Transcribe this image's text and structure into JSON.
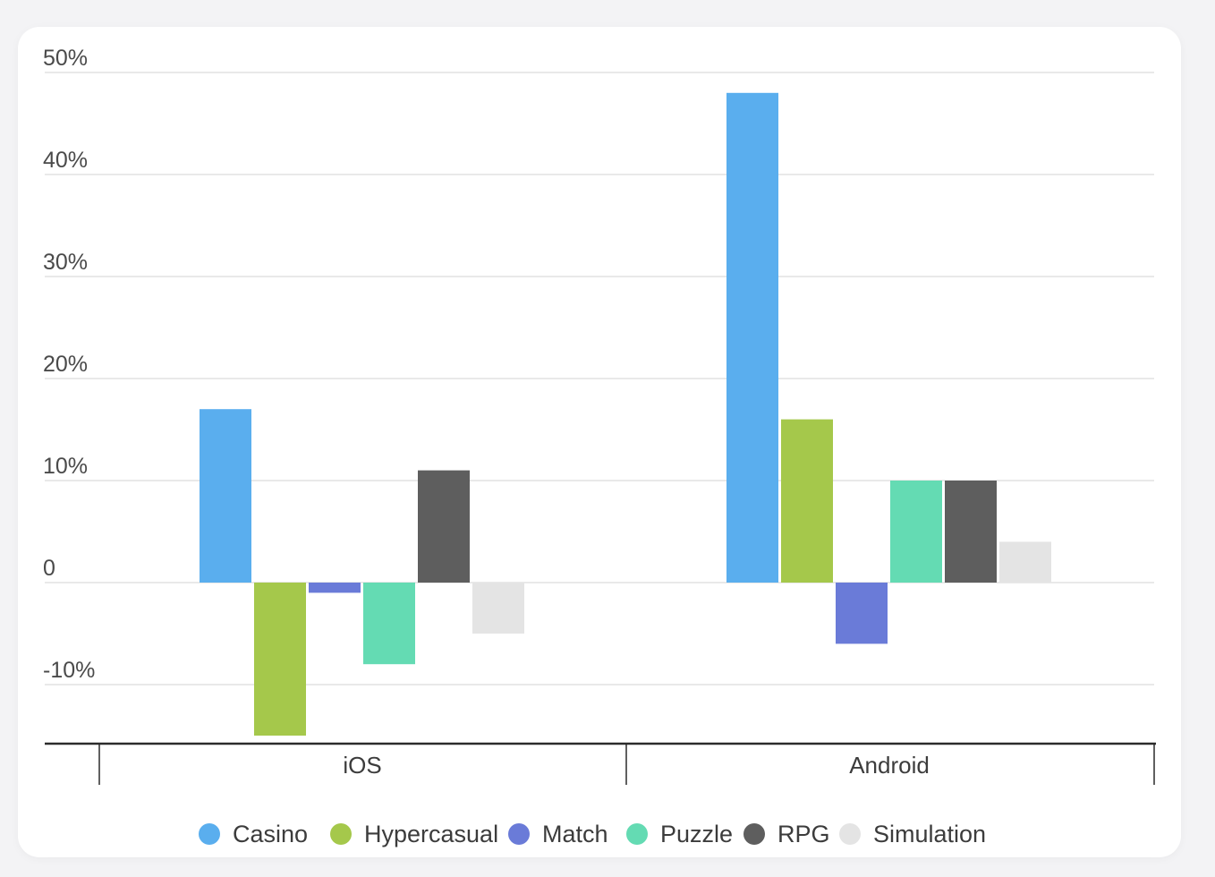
{
  "chart_data": {
    "type": "bar",
    "categories": [
      "iOS",
      "Android"
    ],
    "series": [
      {
        "name": "Casino",
        "values": [
          17,
          48
        ],
        "color": "#5aaeee"
      },
      {
        "name": "Hypercasual",
        "values": [
          -15,
          16
        ],
        "color": "#a5c84b"
      },
      {
        "name": "Match",
        "values": [
          -1,
          -6
        ],
        "color": "#6a7bd8"
      },
      {
        "name": "Puzzle",
        "values": [
          -8,
          10
        ],
        "color": "#64dbb3"
      },
      {
        "name": "RPG",
        "values": [
          11,
          10
        ],
        "color": "#5e5e5e"
      },
      {
        "name": "Simulation",
        "values": [
          -5,
          4
        ],
        "color": "#e4e4e4"
      }
    ],
    "yticks": [
      -10,
      0,
      10,
      20,
      30,
      40,
      50
    ],
    "ytick_labels": [
      "-10%",
      "0",
      "10%",
      "20%",
      "30%",
      "40%",
      "50%"
    ],
    "ylim": [
      -16,
      50
    ],
    "grid": true,
    "legend_position": "bottom",
    "title": "",
    "xlabel": "",
    "ylabel": ""
  }
}
